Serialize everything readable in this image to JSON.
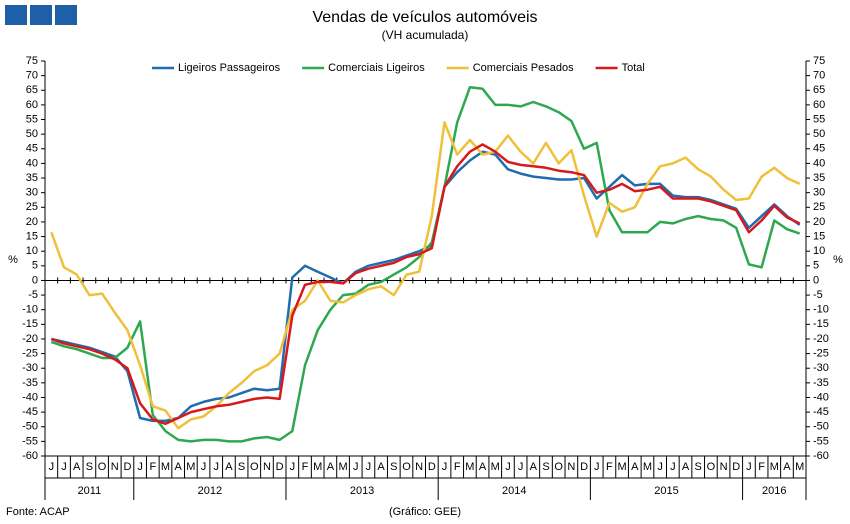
{
  "chart_data": {
    "type": "line",
    "title": "Vendas de veículos automóveis",
    "subtitle": "(VH acumulada)",
    "ylabel": "%",
    "y2label": "%",
    "source": "Fonte: ACAP",
    "credit": "(Gráfico: GEE)",
    "categories": [
      "J",
      "J",
      "A",
      "S",
      "O",
      "N",
      "D",
      "J",
      "F",
      "M",
      "A",
      "M",
      "J",
      "J",
      "A",
      "S",
      "O",
      "N",
      "D",
      "J",
      "F",
      "M",
      "A",
      "M",
      "J",
      "J",
      "A",
      "S",
      "O",
      "N",
      "D",
      "J",
      "F",
      "M",
      "A",
      "M",
      "J",
      "J",
      "A",
      "S",
      "O",
      "N",
      "D",
      "J",
      "F",
      "M",
      "A",
      "M",
      "J",
      "J",
      "A",
      "S",
      "O",
      "N",
      "D",
      "J",
      "F",
      "M",
      "A",
      "M"
    ],
    "year_labels": [
      "2011",
      "2012",
      "2013",
      "2014",
      "2015",
      "2016"
    ],
    "series": [
      {
        "name": "Ligeiros Passageiros",
        "color": "#1f6cb0",
        "values": [
          -20,
          -21,
          -22,
          -23,
          -24.5,
          -26,
          -31,
          -47,
          -48,
          -48,
          -47,
          -43,
          -41.5,
          -40.5,
          -40,
          -38.5,
          -37,
          -37.5,
          -37,
          1,
          5,
          3,
          1,
          -1,
          3,
          5,
          6,
          7,
          8.5,
          10,
          12,
          32,
          37,
          41,
          44,
          43,
          38,
          36.5,
          35.5,
          35,
          34.5,
          34.5,
          35,
          28,
          32,
          36,
          32.5,
          33,
          33,
          29,
          28.5,
          28.5,
          27.5,
          26,
          24.5,
          18,
          22,
          26,
          22,
          19
        ]
      },
      {
        "name": "Comerciais Ligeiros",
        "color": "#2ea84f",
        "values": [
          -21,
          -22.5,
          -23.5,
          -25,
          -26.5,
          -26.5,
          -23,
          -14,
          -46,
          -51.5,
          -54.5,
          -55,
          -54.5,
          -54.5,
          -55,
          -55,
          -54,
          -53.5,
          -54.5,
          -51.5,
          -29,
          -17,
          -10,
          -5,
          -4.5,
          -1.5,
          -0.5,
          2,
          4.5,
          8,
          13,
          32,
          54,
          66,
          65.5,
          60,
          60,
          59.5,
          61,
          59.5,
          57.5,
          54.5,
          45,
          47,
          24,
          16.5,
          16.5,
          16.5,
          20,
          19.5,
          21,
          22,
          21,
          20.5,
          18,
          5.5,
          4.5,
          20.5,
          17.5,
          16
        ]
      },
      {
        "name": "Comerciais Pesados",
        "color": "#f0c03a",
        "values": [
          16.5,
          4.5,
          2,
          -5,
          -4.5,
          -11,
          -17,
          -29,
          -43,
          -44.5,
          -50.5,
          -47.5,
          -46.5,
          -43,
          -38.5,
          -35,
          -31,
          -29,
          -25,
          -10,
          -7,
          0,
          -7,
          -7.5,
          -5,
          -3,
          -2,
          -5,
          2,
          3,
          22,
          54,
          43,
          48,
          43,
          44,
          49.5,
          44,
          40,
          47,
          40,
          44.5,
          29,
          15,
          26.5,
          23.5,
          25,
          33,
          39,
          40,
          42,
          38,
          35.5,
          31,
          27.5,
          28,
          35.5,
          38.5,
          35,
          33
        ]
      },
      {
        "name": "Total",
        "color": "#d7191c",
        "values": [
          -20,
          -21.5,
          -22.5,
          -23.5,
          -25,
          -27,
          -30,
          -42,
          -47.5,
          -49,
          -47,
          -45,
          -44,
          -43,
          -42.5,
          -41.5,
          -40.5,
          -40,
          -40.5,
          -12,
          -1.5,
          -0.5,
          -0.5,
          -1,
          2.5,
          4,
          5,
          6,
          8,
          9,
          11,
          32,
          39,
          44,
          46.5,
          44,
          40.5,
          39.5,
          39,
          38.5,
          37.5,
          37,
          36,
          30,
          31,
          33,
          30.5,
          31,
          32,
          28,
          28,
          28,
          27,
          25.5,
          24,
          16.5,
          20.5,
          25.5,
          21.5,
          19.5
        ]
      }
    ],
    "ylim": [
      -60,
      75
    ],
    "yticks": [
      75,
      70,
      65,
      60,
      55,
      50,
      45,
      40,
      35,
      30,
      25,
      20,
      15,
      10,
      5,
      0,
      -5,
      -10,
      -15,
      -20,
      -25,
      -30,
      -35,
      -40,
      -45,
      -50,
      -55,
      -60
    ],
    "y2lim": [
      -60,
      75
    ],
    "y2ticks": [
      75,
      70,
      65,
      60,
      55,
      50,
      45,
      40,
      35,
      30,
      25,
      20,
      15,
      10,
      5,
      0,
      -5,
      -10,
      -15,
      -20,
      -25,
      -30,
      -35,
      -40,
      -45,
      -50,
      -55,
      -60
    ],
    "legend": "top",
    "grid": false
  }
}
